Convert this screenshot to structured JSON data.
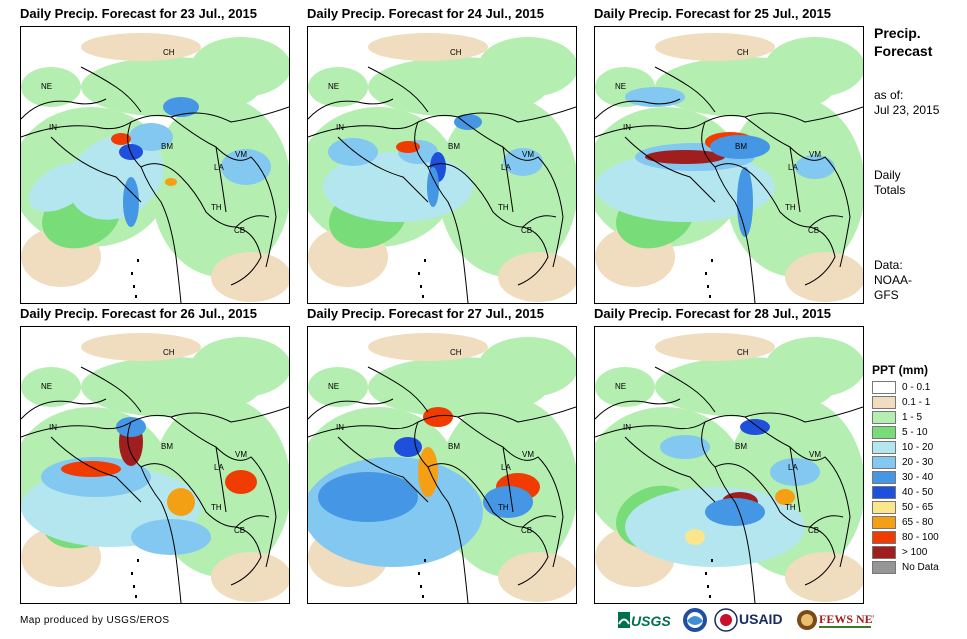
{
  "panels": [
    {
      "title": "Daily Precip. Forecast for 23 Jul., 2015"
    },
    {
      "title": "Daily Precip. Forecast for 24 Jul., 2015"
    },
    {
      "title": "Daily Precip. Forecast for 25 Jul., 2015"
    },
    {
      "title": "Daily Precip. Forecast for 26 Jul., 2015"
    },
    {
      "title": "Daily Precip. Forecast for 27 Jul., 2015"
    },
    {
      "title": "Daily Precip. Forecast for 28 Jul., 2015"
    }
  ],
  "country_labels": {
    "ch": "CH",
    "ne": "NE",
    "in": "IN",
    "bm": "BM",
    "la": "LA",
    "vm": "VM",
    "th": "TH",
    "cb": "CB"
  },
  "side": {
    "title_line1": "Precip.",
    "title_line2": "Forecast",
    "asof_line1": "as of:",
    "asof_line2": "Jul 23, 2015",
    "totals_line1": "Daily",
    "totals_line2": "Totals",
    "data_line1": "Data:",
    "data_line2": "NOAA-",
    "data_line3": "GFS"
  },
  "legend": {
    "title": "PPT (mm)",
    "items": [
      {
        "label": "0 - 0.1",
        "color": "#ffffff"
      },
      {
        "label": "0.1 - 1",
        "color": "#f0dcbe"
      },
      {
        "label": "1 - 5",
        "color": "#b4eeb0"
      },
      {
        "label": "5 - 10",
        "color": "#78dc78"
      },
      {
        "label": "10 - 20",
        "color": "#b4e6f0"
      },
      {
        "label": "20 - 30",
        "color": "#82c8f0"
      },
      {
        "label": "30 - 40",
        "color": "#4696e6"
      },
      {
        "label": "40 - 50",
        "color": "#1e50dc"
      },
      {
        "label": "50 - 65",
        "color": "#fae68c"
      },
      {
        "label": "65 - 80",
        "color": "#f5a014"
      },
      {
        "label": "80 - 100",
        "color": "#f03c00"
      },
      {
        "label": "> 100",
        "color": "#a01e1e"
      },
      {
        "label": "No Data",
        "color": "#969696"
      }
    ]
  },
  "credit": "Map produced by USGS/EROS",
  "logos": {
    "usgs": "USGS",
    "usaid": "USAID",
    "fewsnet": "FEWS NET"
  }
}
